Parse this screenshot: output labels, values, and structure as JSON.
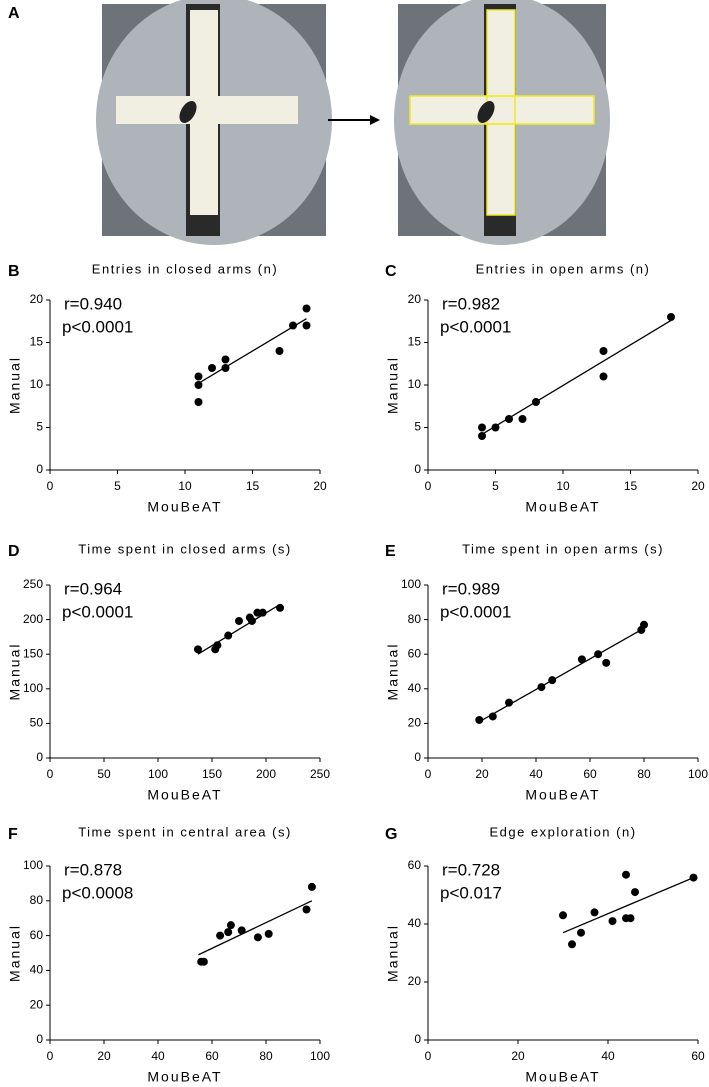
{
  "panel_a": {
    "label": "A"
  },
  "chart_data": [
    {
      "type": "scatter",
      "panel": "B",
      "title": "Entries in closed arms (n)",
      "xlabel": "MouBeAT",
      "ylabel": "Manual",
      "annotations": [
        "r=0.940",
        "p<0.0001"
      ],
      "x": [
        11,
        11,
        11,
        12,
        13,
        13,
        17,
        18,
        19,
        19
      ],
      "y": [
        11,
        10,
        8,
        12,
        13,
        12,
        14,
        17,
        19,
        17
      ],
      "fit_line": {
        "x": [
          11,
          19
        ],
        "y": [
          10.2,
          17.8
        ]
      },
      "xlim": [
        0,
        20
      ],
      "ylim": [
        0,
        20
      ],
      "xticks": [
        0,
        5,
        10,
        15,
        20
      ],
      "yticks": [
        0,
        5,
        10,
        15,
        20
      ],
      "color": "#000000"
    },
    {
      "type": "scatter",
      "panel": "C",
      "title": "Entries in open arms (n)",
      "xlabel": "MouBeAT",
      "ylabel": "Manual",
      "annotations": [
        "r=0.982",
        "p<0.0001"
      ],
      "x": [
        4,
        4,
        5,
        6,
        7,
        8,
        13,
        13,
        18
      ],
      "y": [
        5,
        4,
        5,
        6,
        6,
        8,
        14,
        11,
        18
      ],
      "fit_line": {
        "x": [
          4,
          18
        ],
        "y": [
          4.2,
          17.6
        ]
      },
      "xlim": [
        0,
        20
      ],
      "ylim": [
        0,
        20
      ],
      "xticks": [
        0,
        5,
        10,
        15,
        20
      ],
      "yticks": [
        0,
        5,
        10,
        15,
        20
      ],
      "color": "#000000"
    },
    {
      "type": "scatter",
      "panel": "D",
      "title": "Time spent in closed arms (s)",
      "xlabel": "MouBeAT",
      "ylabel": "Manual",
      "annotations": [
        "r=0.964",
        "p<0.0001"
      ],
      "x": [
        137,
        153,
        155,
        165,
        175,
        185,
        187,
        192,
        197,
        213
      ],
      "y": [
        157,
        157,
        163,
        177,
        198,
        203,
        198,
        210,
        210,
        217
      ],
      "fit_line": {
        "x": [
          137,
          213
        ],
        "y": [
          150,
          222
        ]
      },
      "xlim": [
        0,
        250
      ],
      "ylim": [
        0,
        250
      ],
      "xticks": [
        0,
        50,
        100,
        150,
        200,
        250
      ],
      "yticks": [
        0,
        50,
        100,
        150,
        200,
        250
      ],
      "color": "#000000"
    },
    {
      "type": "scatter",
      "panel": "E",
      "title": "Time spent in open arms (s)",
      "xlabel": "MouBeAT",
      "ylabel": "Manual",
      "annotations": [
        "r=0.989",
        "p<0.0001"
      ],
      "x": [
        19,
        24,
        30,
        42,
        46,
        57,
        63,
        66,
        79,
        80
      ],
      "y": [
        22,
        24,
        32,
        41,
        45,
        57,
        60,
        55,
        74,
        77
      ],
      "fit_line": {
        "x": [
          19,
          80
        ],
        "y": [
          21,
          75
        ]
      },
      "xlim": [
        0,
        100
      ],
      "ylim": [
        0,
        100
      ],
      "xticks": [
        0,
        20,
        40,
        60,
        80,
        100
      ],
      "yticks": [
        0,
        20,
        40,
        60,
        80,
        100
      ],
      "color": "#000000"
    },
    {
      "type": "scatter",
      "panel": "F",
      "title": "Time spent in central area (s)",
      "xlabel": "MouBeAT",
      "ylabel": "Manual",
      "annotations": [
        "r=0.878",
        "p<0.0008"
      ],
      "x": [
        56,
        57,
        63,
        66,
        67,
        71,
        77,
        81,
        95,
        97
      ],
      "y": [
        45,
        45,
        60,
        62,
        66,
        63,
        59,
        61,
        75,
        88
      ],
      "fit_line": {
        "x": [
          55,
          97
        ],
        "y": [
          49,
          80
        ]
      },
      "xlim": [
        0,
        100
      ],
      "ylim": [
        0,
        100
      ],
      "xticks": [
        0,
        20,
        40,
        60,
        80,
        100
      ],
      "yticks": [
        0,
        20,
        40,
        60,
        80,
        100
      ],
      "color": "#000000"
    },
    {
      "type": "scatter",
      "panel": "G",
      "title": "Edge exploration (n)",
      "xlabel": "MouBeAT",
      "ylabel": "Manual",
      "annotations": [
        "r=0.728",
        "p<0.017"
      ],
      "x": [
        30,
        32,
        34,
        37,
        41,
        44,
        44,
        45,
        46,
        59
      ],
      "y": [
        43,
        33,
        37,
        44,
        41,
        57,
        42,
        42,
        51,
        56
      ],
      "fit_line": {
        "x": [
          30,
          59
        ],
        "y": [
          37,
          56
        ]
      },
      "xlim": [
        0,
        60
      ],
      "ylim": [
        0,
        60
      ],
      "xticks": [
        0,
        20,
        40,
        60
      ],
      "yticks": [
        0,
        20,
        40,
        60
      ],
      "color": "#000000"
    }
  ]
}
